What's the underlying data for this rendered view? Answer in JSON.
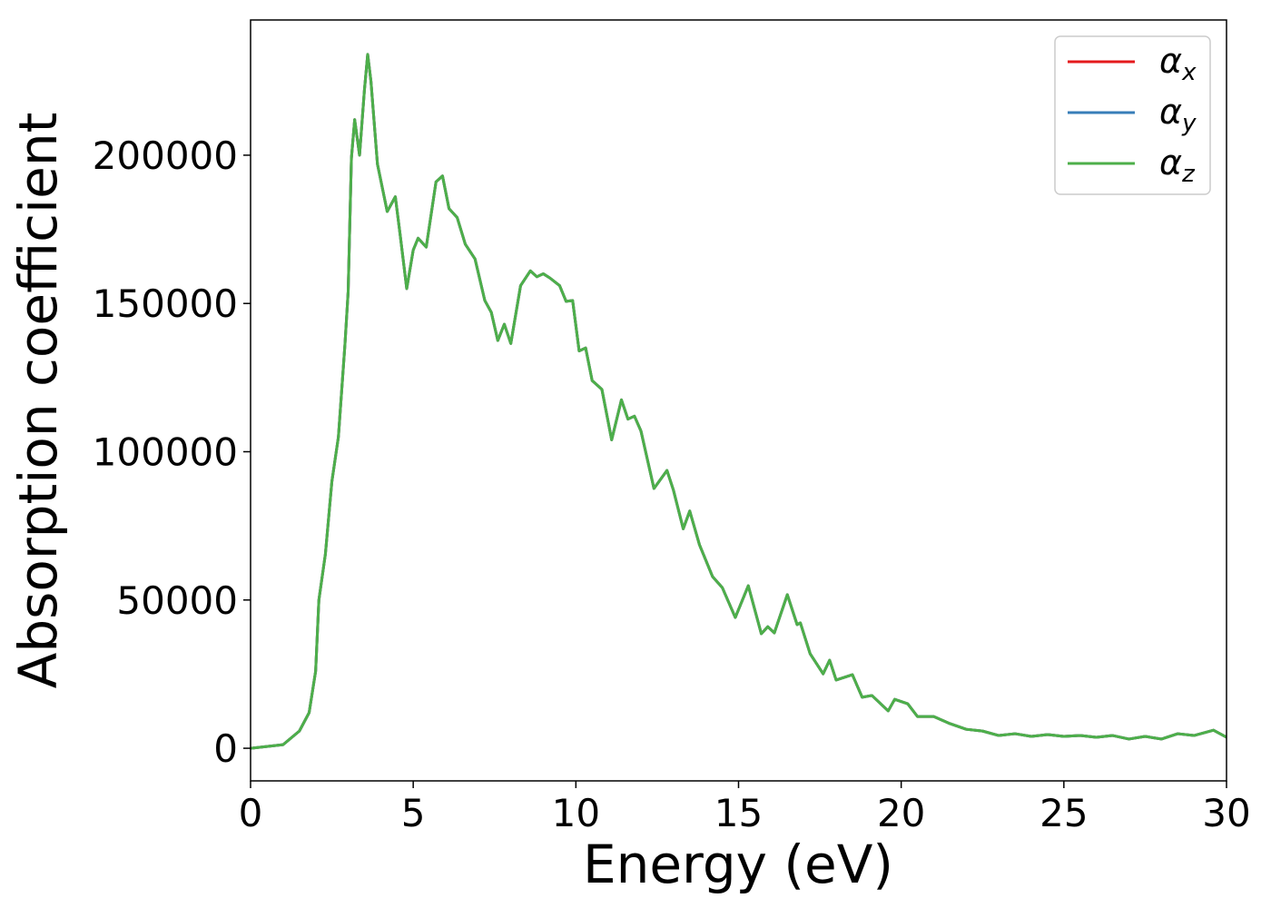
{
  "chart_data": {
    "type": "line",
    "xlabel": "Energy (eV)",
    "ylabel": "Absorption coefficient",
    "x": [
      0,
      1.0,
      1.5,
      1.8,
      2.0,
      2.1,
      2.3,
      2.5,
      2.7,
      2.9,
      3.0,
      3.1,
      3.2,
      3.35,
      3.5,
      3.6,
      3.7,
      3.9,
      4.2,
      4.45,
      4.6,
      4.8,
      5.0,
      5.15,
      5.4,
      5.7,
      5.9,
      6.1,
      6.35,
      6.6,
      6.9,
      7.2,
      7.4,
      7.6,
      7.8,
      8.0,
      8.3,
      8.6,
      8.8,
      9.0,
      9.2,
      9.5,
      9.7,
      9.9,
      10.1,
      10.3,
      10.5,
      10.8,
      11.1,
      11.4,
      11.6,
      11.8,
      12.0,
      12.4,
      12.8,
      13.0,
      13.3,
      13.5,
      13.8,
      14.2,
      14.5,
      14.9,
      15.3,
      15.7,
      15.9,
      16.1,
      16.5,
      16.8,
      16.9,
      17.2,
      17.6,
      17.8,
      18.0,
      18.5,
      18.8,
      19.1,
      19.6,
      19.8,
      20.2,
      20.5,
      21.0,
      21.5,
      22.0,
      22.5,
      23.0,
      23.5,
      24.0,
      24.5,
      25.0,
      25.5,
      26.0,
      26.5,
      27.0,
      27.5,
      28.0,
      28.5,
      29.0,
      29.6,
      30.0
    ],
    "series": [
      {
        "name": "αx",
        "color": "#e41a1c",
        "values": [
          0,
          1200,
          5800,
          12000,
          26000,
          50000,
          65500,
          90000,
          105000,
          136000,
          154000,
          199000,
          212000,
          200000,
          222000,
          234000,
          225000,
          197000,
          181000,
          186000,
          173000,
          155000,
          168000,
          172000,
          169000,
          191000,
          193000,
          182000,
          179000,
          170000,
          165000,
          151000,
          147000,
          137500,
          143000,
          136500,
          156000,
          161000,
          159000,
          160000,
          158600,
          156000,
          150700,
          151000,
          134000,
          135000,
          124000,
          121000,
          104000,
          117500,
          111000,
          112000,
          107000,
          87600,
          93700,
          87000,
          74000,
          80000,
          68600,
          57900,
          54200,
          44100,
          54800,
          38600,
          41000,
          38900,
          51800,
          41700,
          42300,
          31900,
          25100,
          29700,
          23000,
          24800,
          17200,
          17800,
          12600,
          16500,
          15000,
          10700,
          10700,
          8300,
          6400,
          5800,
          4300,
          4900,
          4000,
          4600,
          4000,
          4300,
          3700,
          4300,
          3100,
          4000,
          3100,
          4900,
          4300,
          6100,
          3700
        ]
      },
      {
        "name": "αy",
        "color": "#377eb8",
        "values": [
          0,
          1200,
          5800,
          12000,
          26000,
          50000,
          65500,
          90000,
          105000,
          136000,
          154000,
          199000,
          212000,
          200000,
          222000,
          234000,
          225000,
          197000,
          181000,
          186000,
          173000,
          155000,
          168000,
          172000,
          169000,
          191000,
          193000,
          182000,
          179000,
          170000,
          165000,
          151000,
          147000,
          137500,
          143000,
          136500,
          156000,
          161000,
          159000,
          160000,
          158600,
          156000,
          150700,
          151000,
          134000,
          135000,
          124000,
          121000,
          104000,
          117500,
          111000,
          112000,
          107000,
          87600,
          93700,
          87000,
          74000,
          80000,
          68600,
          57900,
          54200,
          44100,
          54800,
          38600,
          41000,
          38900,
          51800,
          41700,
          42300,
          31900,
          25100,
          29700,
          23000,
          24800,
          17200,
          17800,
          12600,
          16500,
          15000,
          10700,
          10700,
          8300,
          6400,
          5800,
          4300,
          4900,
          4000,
          4600,
          4000,
          4300,
          3700,
          4300,
          3100,
          4000,
          3100,
          4900,
          4300,
          6100,
          3700
        ]
      },
      {
        "name": "αz",
        "color": "#4daf4a",
        "values": [
          0,
          1200,
          5800,
          12000,
          26000,
          50000,
          65500,
          90000,
          105000,
          136000,
          154000,
          199000,
          212000,
          200000,
          222000,
          234000,
          225000,
          197000,
          181000,
          186000,
          173000,
          155000,
          168000,
          172000,
          169000,
          191000,
          193000,
          182000,
          179000,
          170000,
          165000,
          151000,
          147000,
          137500,
          143000,
          136500,
          156000,
          161000,
          159000,
          160000,
          158600,
          156000,
          150700,
          151000,
          134000,
          135000,
          124000,
          121000,
          104000,
          117500,
          111000,
          112000,
          107000,
          87600,
          93700,
          87000,
          74000,
          80000,
          68600,
          57900,
          54200,
          44100,
          54800,
          38600,
          41000,
          38900,
          51800,
          41700,
          42300,
          31900,
          25100,
          29700,
          23000,
          24800,
          17200,
          17800,
          12600,
          16500,
          15000,
          10700,
          10700,
          8300,
          6400,
          5800,
          4300,
          4900,
          4000,
          4600,
          4000,
          4300,
          3700,
          4300,
          3100,
          4000,
          3100,
          4900,
          4300,
          6100,
          3700
        ]
      }
    ],
    "xlim": [
      0,
      30
    ],
    "xticks": [
      0,
      5,
      10,
      15,
      20,
      25,
      30
    ],
    "ylim": [
      -11000,
      245600
    ],
    "yticks": [
      0,
      50000,
      100000,
      150000,
      200000
    ],
    "grid": false,
    "legend": "upper right"
  }
}
